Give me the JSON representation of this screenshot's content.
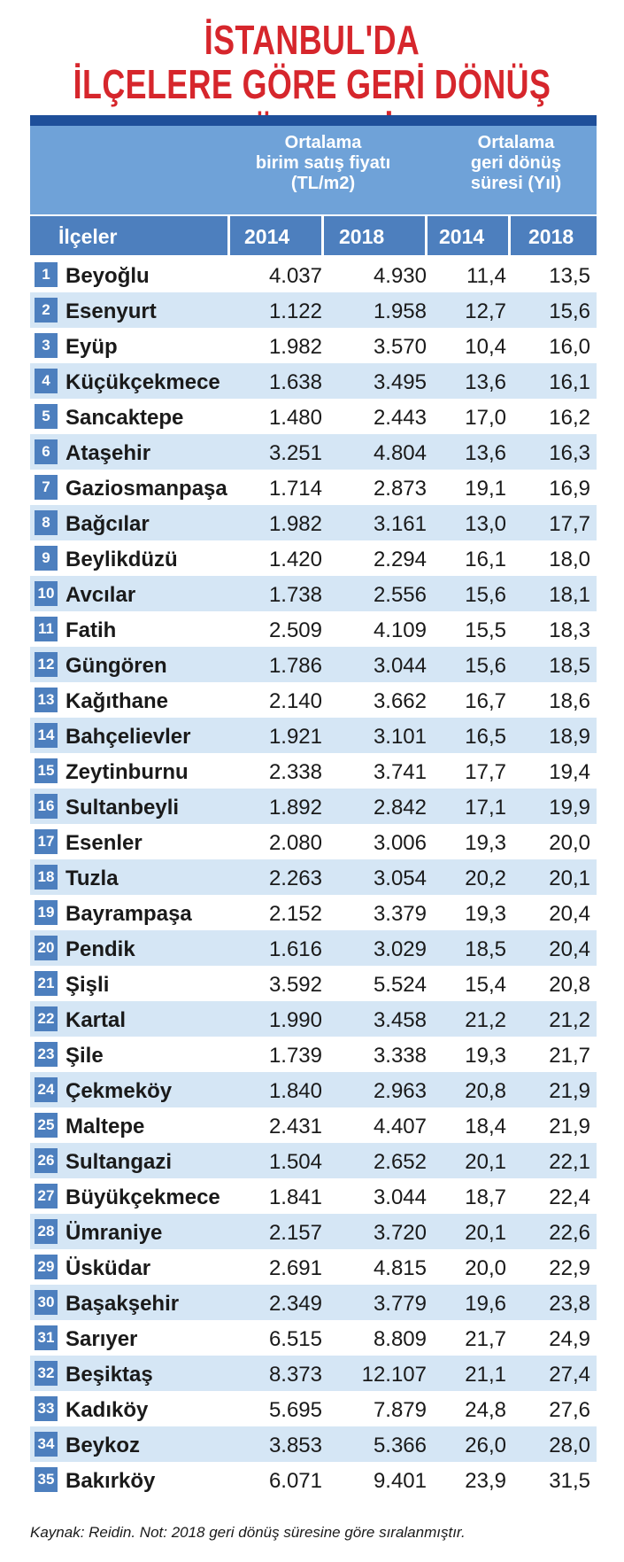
{
  "chart_data": {
    "type": "table",
    "title": [
      "İSTANBUL'DA",
      "İLÇELERE GÖRE GERİ DÖNÜŞ SÜRELERİ"
    ],
    "group_headers": {
      "price": [
        "Ortalama",
        "birim satış fiyatı",
        "(TL/m2)"
      ],
      "return": [
        "Ortalama",
        "geri dönüş",
        "süresi (Yıl)"
      ]
    },
    "columns": [
      "İlçeler",
      "2014",
      "2018",
      "2014",
      "2018"
    ],
    "rows": [
      {
        "rank": "1",
        "district": "Beyoğlu",
        "price_2014": "4.037",
        "price_2018": "4.930",
        "return_2014": "11,4",
        "return_2018": "13,5"
      },
      {
        "rank": "2",
        "district": "Esenyurt",
        "price_2014": "1.122",
        "price_2018": "1.958",
        "return_2014": "12,7",
        "return_2018": "15,6"
      },
      {
        "rank": "3",
        "district": "Eyüp",
        "price_2014": "1.982",
        "price_2018": "3.570",
        "return_2014": "10,4",
        "return_2018": "16,0"
      },
      {
        "rank": "4",
        "district": "Küçükçekmece",
        "price_2014": "1.638",
        "price_2018": "3.495",
        "return_2014": "13,6",
        "return_2018": "16,1"
      },
      {
        "rank": "5",
        "district": "Sancaktepe",
        "price_2014": "1.480",
        "price_2018": "2.443",
        "return_2014": "17,0",
        "return_2018": "16,2"
      },
      {
        "rank": "6",
        "district": "Ataşehir",
        "price_2014": "3.251",
        "price_2018": "4.804",
        "return_2014": "13,6",
        "return_2018": "16,3"
      },
      {
        "rank": "7",
        "district": "Gaziosmanpaşa",
        "price_2014": "1.714",
        "price_2018": "2.873",
        "return_2014": "19,1",
        "return_2018": "16,9"
      },
      {
        "rank": "8",
        "district": "Bağcılar",
        "price_2014": "1.982",
        "price_2018": "3.161",
        "return_2014": "13,0",
        "return_2018": "17,7"
      },
      {
        "rank": "9",
        "district": "Beylikdüzü",
        "price_2014": "1.420",
        "price_2018": "2.294",
        "return_2014": "16,1",
        "return_2018": "18,0"
      },
      {
        "rank": "10",
        "district": "Avcılar",
        "price_2014": "1.738",
        "price_2018": "2.556",
        "return_2014": "15,6",
        "return_2018": "18,1"
      },
      {
        "rank": "11",
        "district": "Fatih",
        "price_2014": "2.509",
        "price_2018": "4.109",
        "return_2014": "15,5",
        "return_2018": "18,3"
      },
      {
        "rank": "12",
        "district": "Güngören",
        "price_2014": "1.786",
        "price_2018": "3.044",
        "return_2014": "15,6",
        "return_2018": "18,5"
      },
      {
        "rank": "13",
        "district": "Kağıthane",
        "price_2014": "2.140",
        "price_2018": "3.662",
        "return_2014": "16,7",
        "return_2018": "18,6"
      },
      {
        "rank": "14",
        "district": "Bahçelievler",
        "price_2014": "1.921",
        "price_2018": "3.101",
        "return_2014": "16,5",
        "return_2018": "18,9"
      },
      {
        "rank": "15",
        "district": "Zeytinburnu",
        "price_2014": "2.338",
        "price_2018": "3.741",
        "return_2014": "17,7",
        "return_2018": "19,4"
      },
      {
        "rank": "16",
        "district": "Sultanbeyli",
        "price_2014": "1.892",
        "price_2018": "2.842",
        "return_2014": "17,1",
        "return_2018": "19,9"
      },
      {
        "rank": "17",
        "district": "Esenler",
        "price_2014": "2.080",
        "price_2018": "3.006",
        "return_2014": "19,3",
        "return_2018": "20,0"
      },
      {
        "rank": "18",
        "district": "Tuzla",
        "price_2014": "2.263",
        "price_2018": "3.054",
        "return_2014": "20,2",
        "return_2018": "20,1"
      },
      {
        "rank": "19",
        "district": "Bayrampaşa",
        "price_2014": "2.152",
        "price_2018": "3.379",
        "return_2014": "19,3",
        "return_2018": "20,4"
      },
      {
        "rank": "20",
        "district": "Pendik",
        "price_2014": "1.616",
        "price_2018": "3.029",
        "return_2014": "18,5",
        "return_2018": "20,4"
      },
      {
        "rank": "21",
        "district": "Şişli",
        "price_2014": "3.592",
        "price_2018": "5.524",
        "return_2014": "15,4",
        "return_2018": "20,8"
      },
      {
        "rank": "22",
        "district": "Kartal",
        "price_2014": "1.990",
        "price_2018": "3.458",
        "return_2014": "21,2",
        "return_2018": "21,2"
      },
      {
        "rank": "23",
        "district": "Şile",
        "price_2014": "1.739",
        "price_2018": "3.338",
        "return_2014": "19,3",
        "return_2018": "21,7"
      },
      {
        "rank": "24",
        "district": "Çekmeköy",
        "price_2014": "1.840",
        "price_2018": "2.963",
        "return_2014": "20,8",
        "return_2018": "21,9"
      },
      {
        "rank": "25",
        "district": "Maltepe",
        "price_2014": "2.431",
        "price_2018": "4.407",
        "return_2014": "18,4",
        "return_2018": "21,9"
      },
      {
        "rank": "26",
        "district": "Sultangazi",
        "price_2014": "1.504",
        "price_2018": "2.652",
        "return_2014": "20,1",
        "return_2018": "22,1"
      },
      {
        "rank": "27",
        "district": "Büyükçekmece",
        "price_2014": "1.841",
        "price_2018": "3.044",
        "return_2014": "18,7",
        "return_2018": "22,4"
      },
      {
        "rank": "28",
        "district": "Ümraniye",
        "price_2014": "2.157",
        "price_2018": "3.720",
        "return_2014": "20,1",
        "return_2018": "22,6"
      },
      {
        "rank": "29",
        "district": "Üsküdar",
        "price_2014": "2.691",
        "price_2018": "4.815",
        "return_2014": "20,0",
        "return_2018": "22,9"
      },
      {
        "rank": "30",
        "district": "Başakşehir",
        "price_2014": "2.349",
        "price_2018": "3.779",
        "return_2014": "19,6",
        "return_2018": "23,8"
      },
      {
        "rank": "31",
        "district": "Sarıyer",
        "price_2014": "6.515",
        "price_2018": "8.809",
        "return_2014": "21,7",
        "return_2018": "24,9"
      },
      {
        "rank": "32",
        "district": "Beşiktaş",
        "price_2014": "8.373",
        "price_2018": "12.107",
        "return_2014": "21,1",
        "return_2018": "27,4"
      },
      {
        "rank": "33",
        "district": "Kadıköy",
        "price_2014": "5.695",
        "price_2018": "7.879",
        "return_2014": "24,8",
        "return_2018": "27,6"
      },
      {
        "rank": "34",
        "district": "Beykoz",
        "price_2014": "3.853",
        "price_2018": "5.366",
        "return_2014": "26,0",
        "return_2018": "28,0"
      },
      {
        "rank": "35",
        "district": "Bakırköy",
        "price_2014": "6.071",
        "price_2018": "9.401",
        "return_2014": "23,9",
        "return_2018": "31,5"
      }
    ],
    "footer": "Kaynak: Reidin.    Not: 2018 geri dönüş süresine göre sıralanmıştır."
  },
  "colors": {
    "title_red": "#d6262c",
    "header_dark_blue": "#1e4f9a",
    "header_blue": "#6fa2d8",
    "subheader_blue": "#4d7fbe",
    "row_alt_blue": "#d5e6f5"
  }
}
